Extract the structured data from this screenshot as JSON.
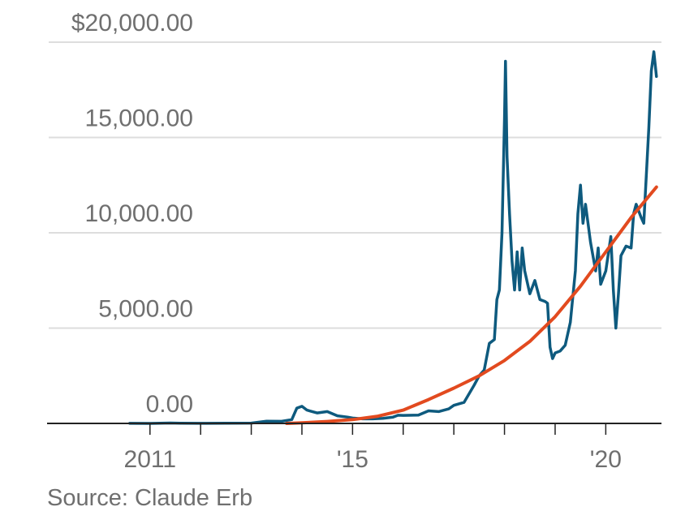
{
  "chart_data": {
    "type": "line",
    "y_tick_labels": [
      "0.00",
      "5,000.00",
      "10,000.00",
      "15,000.00",
      "$20,000.00"
    ],
    "y_ticks": [
      0,
      5000,
      10000,
      15000,
      20000
    ],
    "ylim": [
      0,
      20000
    ],
    "x_tick_labels": [
      "2011",
      "'15",
      "'20"
    ],
    "x_ticks": [
      2011,
      2015,
      2020
    ],
    "x_minor_ticks": [
      2012,
      2013,
      2014,
      2016,
      2017,
      2018,
      2019
    ],
    "xlim": [
      2009.0,
      2021.1
    ],
    "grid": true,
    "colors": {
      "price": "#0e5a7e",
      "trend": "#e24a1f",
      "grid": "#dddddd",
      "axis": "#222222"
    },
    "series": [
      {
        "values": [
          [
            2010.6,
            5
          ],
          [
            2011.0,
            1
          ],
          [
            2011.4,
            20
          ],
          [
            2011.6,
            10
          ],
          [
            2012.0,
            6
          ],
          [
            2012.5,
            10
          ],
          [
            2013.0,
            15
          ],
          [
            2013.3,
            120
          ],
          [
            2013.6,
            110
          ],
          [
            2013.8,
            200
          ],
          [
            2013.9,
            800
          ],
          [
            2014.0,
            900
          ],
          [
            2014.1,
            700
          ],
          [
            2014.3,
            550
          ],
          [
            2014.5,
            620
          ],
          [
            2014.7,
            400
          ],
          [
            2014.9,
            330
          ],
          [
            2015.0,
            280
          ],
          [
            2015.2,
            240
          ],
          [
            2015.4,
            240
          ],
          [
            2015.6,
            270
          ],
          [
            2015.8,
            330
          ],
          [
            2015.9,
            430
          ],
          [
            2016.0,
            420
          ],
          [
            2016.3,
            440
          ],
          [
            2016.5,
            660
          ],
          [
            2016.7,
            620
          ],
          [
            2016.9,
            760
          ],
          [
            2017.0,
            950
          ],
          [
            2017.2,
            1100
          ],
          [
            2017.4,
            2000
          ],
          [
            2017.5,
            2500
          ],
          [
            2017.6,
            2800
          ],
          [
            2017.7,
            4200
          ],
          [
            2017.8,
            4400
          ],
          [
            2017.85,
            6500
          ],
          [
            2017.9,
            7000
          ],
          [
            2017.95,
            10000
          ],
          [
            2018.0,
            16000
          ],
          [
            2018.02,
            19000
          ],
          [
            2018.05,
            14000
          ],
          [
            2018.1,
            11000
          ],
          [
            2018.15,
            8500
          ],
          [
            2018.2,
            7000
          ],
          [
            2018.25,
            9000
          ],
          [
            2018.3,
            7000
          ],
          [
            2018.35,
            9200
          ],
          [
            2018.4,
            8000
          ],
          [
            2018.5,
            6800
          ],
          [
            2018.6,
            7500
          ],
          [
            2018.7,
            6500
          ],
          [
            2018.8,
            6400
          ],
          [
            2018.85,
            6300
          ],
          [
            2018.9,
            4000
          ],
          [
            2018.95,
            3400
          ],
          [
            2019.0,
            3700
          ],
          [
            2019.1,
            3800
          ],
          [
            2019.2,
            4100
          ],
          [
            2019.3,
            5300
          ],
          [
            2019.4,
            8000
          ],
          [
            2019.45,
            11000
          ],
          [
            2019.5,
            12500
          ],
          [
            2019.55,
            10500
          ],
          [
            2019.6,
            11500
          ],
          [
            2019.7,
            9500
          ],
          [
            2019.8,
            8000
          ],
          [
            2019.85,
            9200
          ],
          [
            2019.9,
            7300
          ],
          [
            2020.0,
            8000
          ],
          [
            2020.1,
            9800
          ],
          [
            2020.15,
            7000
          ],
          [
            2020.2,
            5000
          ],
          [
            2020.25,
            6800
          ],
          [
            2020.3,
            8800
          ],
          [
            2020.4,
            9300
          ],
          [
            2020.5,
            9200
          ],
          [
            2020.55,
            11000
          ],
          [
            2020.6,
            11500
          ],
          [
            2020.7,
            10800
          ],
          [
            2020.75,
            10500
          ],
          [
            2020.8,
            13000
          ],
          [
            2020.85,
            15500
          ],
          [
            2020.9,
            18500
          ],
          [
            2020.95,
            19500
          ],
          [
            2021.0,
            18200
          ]
        ]
      },
      {
        "values": [
          [
            2013.7,
            0
          ],
          [
            2014.0,
            30
          ],
          [
            2014.5,
            100
          ],
          [
            2015.0,
            200
          ],
          [
            2015.5,
            380
          ],
          [
            2016.0,
            700
          ],
          [
            2016.5,
            1250
          ],
          [
            2017.0,
            1850
          ],
          [
            2017.5,
            2500
          ],
          [
            2018.0,
            3300
          ],
          [
            2018.5,
            4300
          ],
          [
            2019.0,
            5600
          ],
          [
            2019.5,
            7200
          ],
          [
            2020.0,
            9000
          ],
          [
            2020.5,
            10800
          ],
          [
            2021.0,
            12400
          ]
        ]
      }
    ]
  },
  "source": "Source: Claude Erb"
}
